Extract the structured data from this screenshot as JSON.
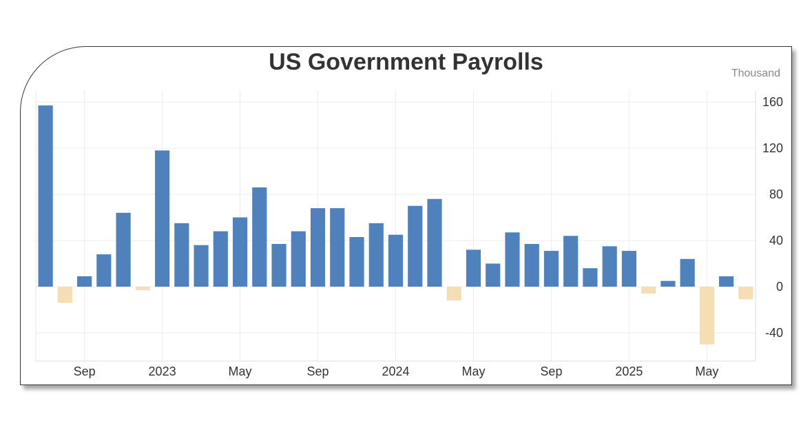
{
  "chart_data": {
    "type": "bar",
    "title": "US Government Payrolls",
    "unit": "Thousand",
    "ylim": [
      -55,
      170
    ],
    "y_ticks": [
      160,
      120,
      80,
      40,
      0,
      -40
    ],
    "x_tick_labels": [
      {
        "label": "Sep",
        "index": 2
      },
      {
        "label": "2023",
        "index": 6
      },
      {
        "label": "May",
        "index": 10
      },
      {
        "label": "Sep",
        "index": 14
      },
      {
        "label": "2024",
        "index": 18
      },
      {
        "label": "May",
        "index": 22
      },
      {
        "label": "Sep",
        "index": 26
      },
      {
        "label": "2025",
        "index": 30
      },
      {
        "label": "May",
        "index": 34
      }
    ],
    "values": [
      157,
      -14,
      9,
      28,
      64,
      -3,
      118,
      55,
      36,
      48,
      60,
      86,
      37,
      48,
      68,
      68,
      43,
      55,
      45,
      70,
      76,
      -12,
      32,
      20,
      47,
      37,
      31,
      44,
      16,
      35,
      31,
      -6,
      5,
      24,
      -50,
      9,
      -11
    ],
    "grid": true,
    "colors": {
      "positive": "#4f81bd",
      "negative": "#f5deb3",
      "grid": "#ececec"
    }
  }
}
